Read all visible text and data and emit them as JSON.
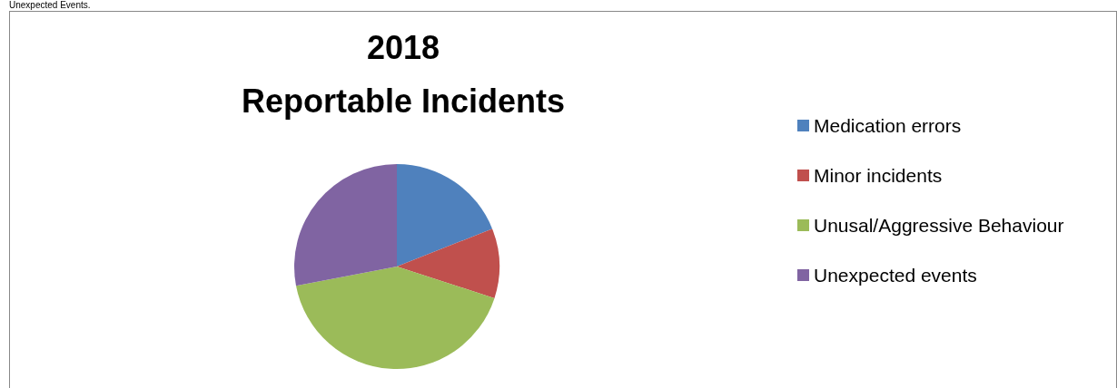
{
  "chart_data": {
    "type": "pie",
    "title": "2018",
    "subtitle": "Reportable Incidents",
    "annotations": [
      "Unexpected Events."
    ],
    "categories": [
      "Medication errors",
      "Minor incidents",
      "Unusal/Aggressive Behaviour",
      "Unexpected events"
    ],
    "values": [
      19,
      11,
      42,
      28
    ],
    "colors": [
      "#4f81bd",
      "#c0504d",
      "#9bbb59",
      "#8064a2"
    ],
    "legend": "right"
  }
}
